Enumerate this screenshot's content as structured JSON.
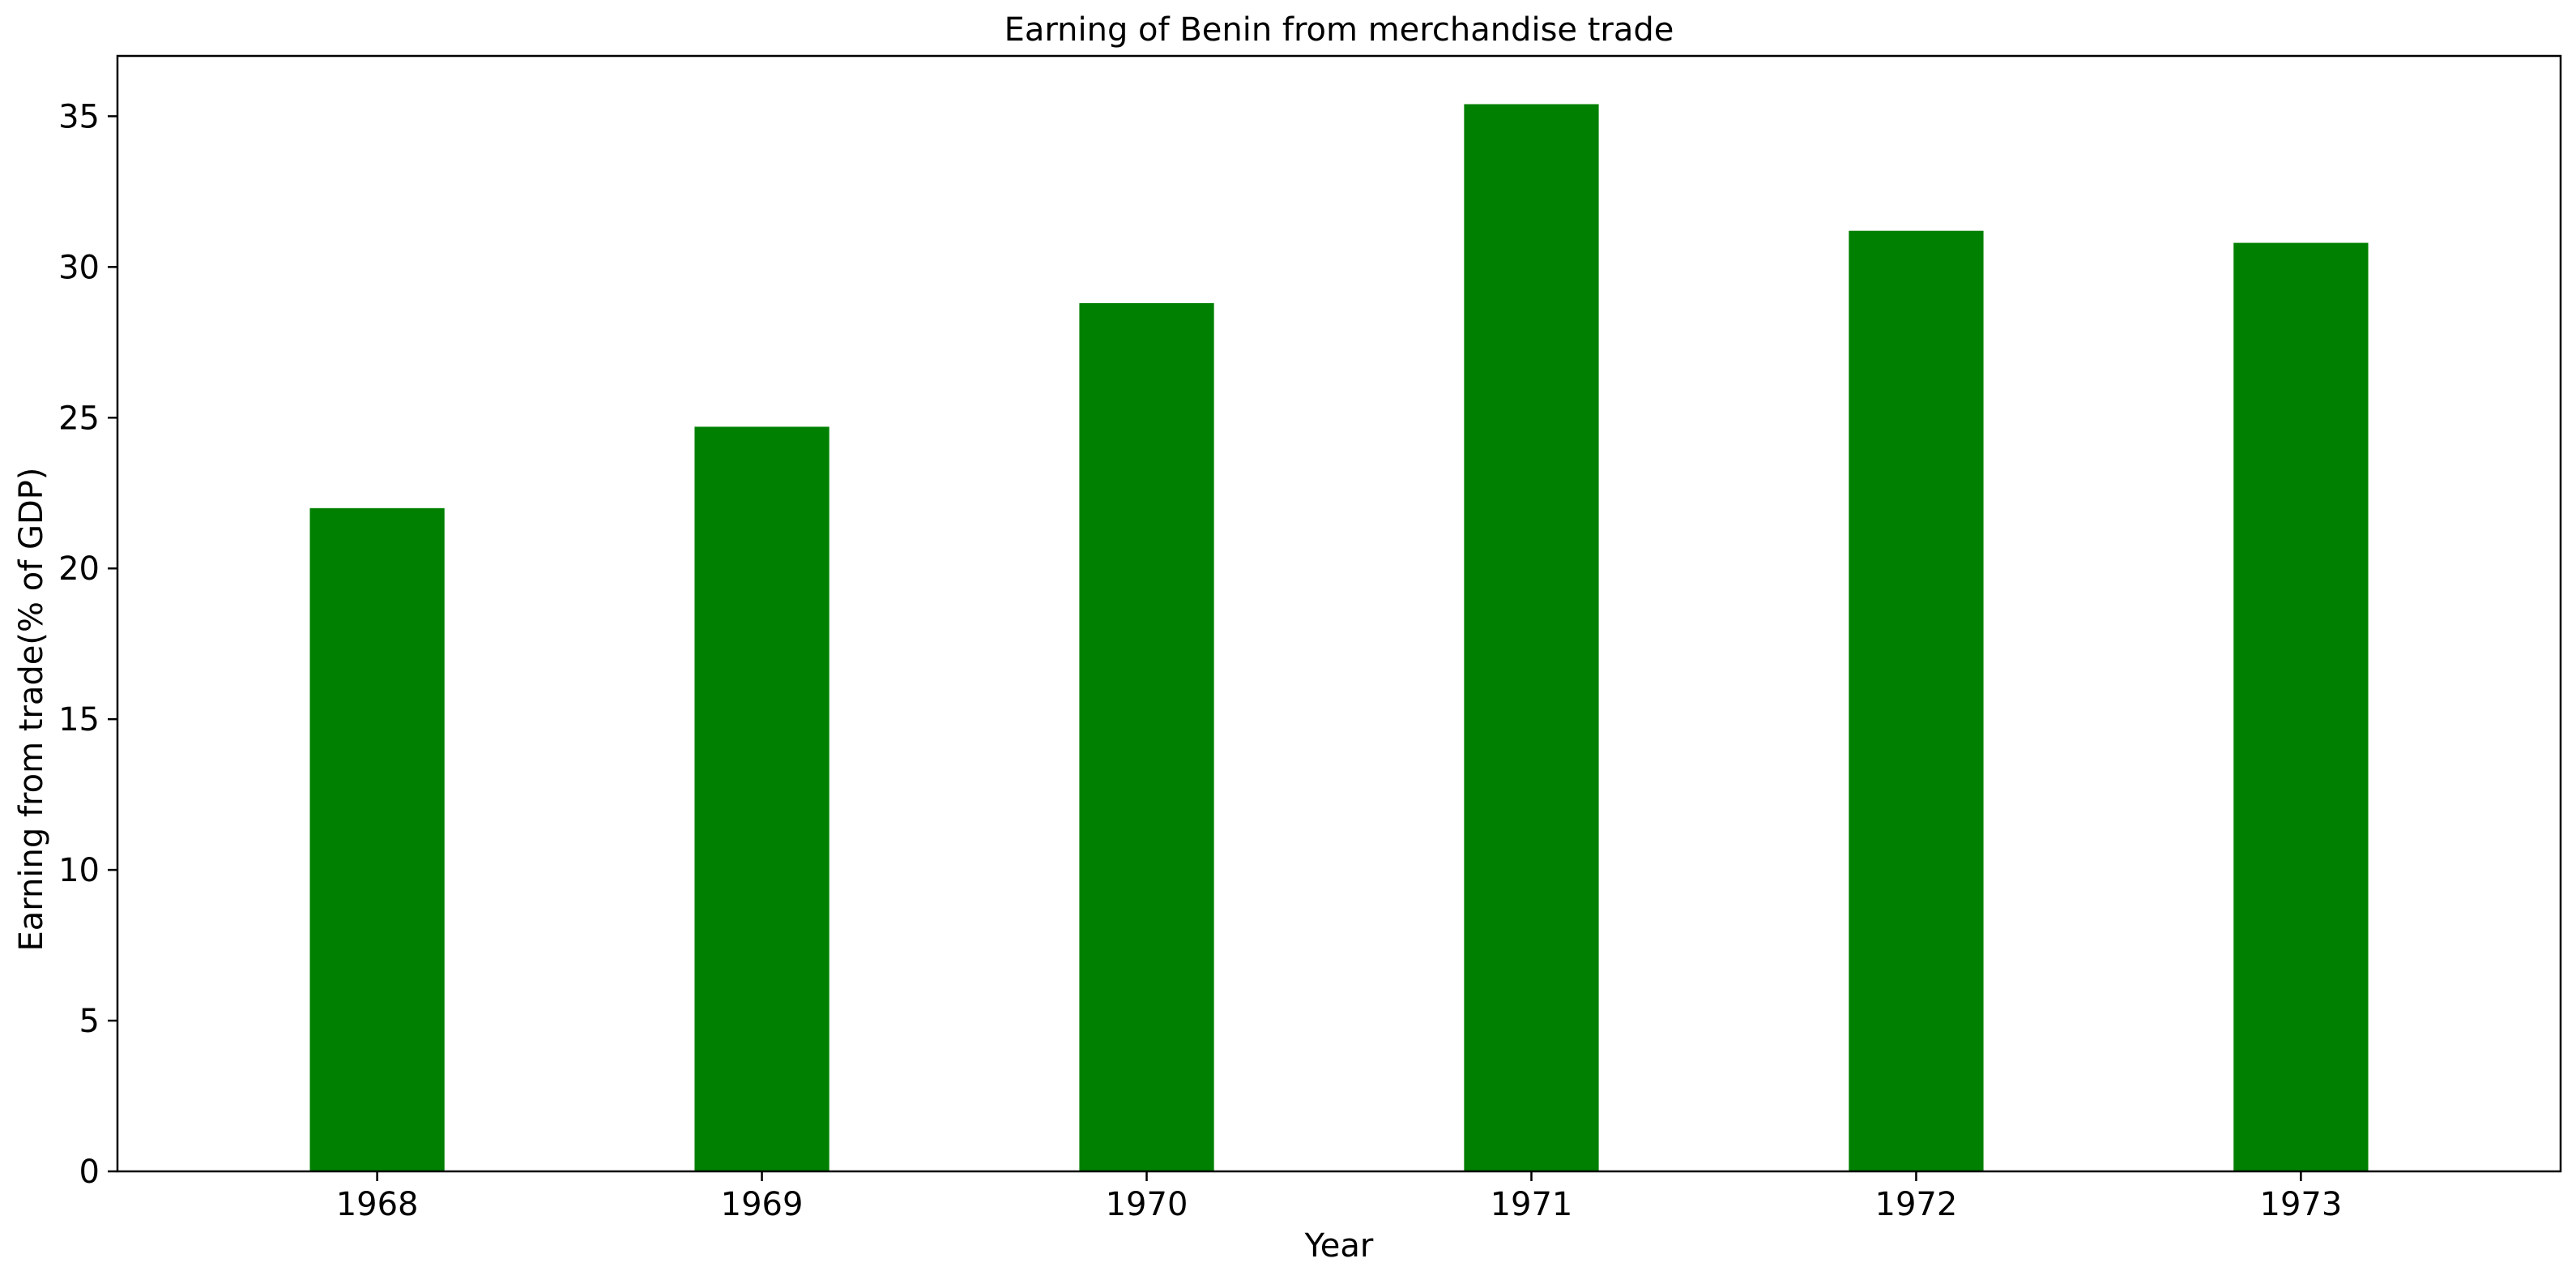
{
  "chart_data": {
    "type": "bar",
    "title": "Earning of Benin from merchandise trade",
    "xlabel": "Year",
    "ylabel": "Earning from trade(% of GDP)",
    "categories": [
      "1968",
      "1969",
      "1970",
      "1971",
      "1972",
      "1973"
    ],
    "values": [
      22.0,
      24.7,
      28.8,
      35.4,
      31.2,
      30.8
    ],
    "ylim": [
      0,
      37
    ],
    "yticks": [
      0,
      5,
      10,
      15,
      20,
      25,
      30,
      35
    ],
    "bar_color": "#008000",
    "grid": false,
    "legend": "none"
  }
}
